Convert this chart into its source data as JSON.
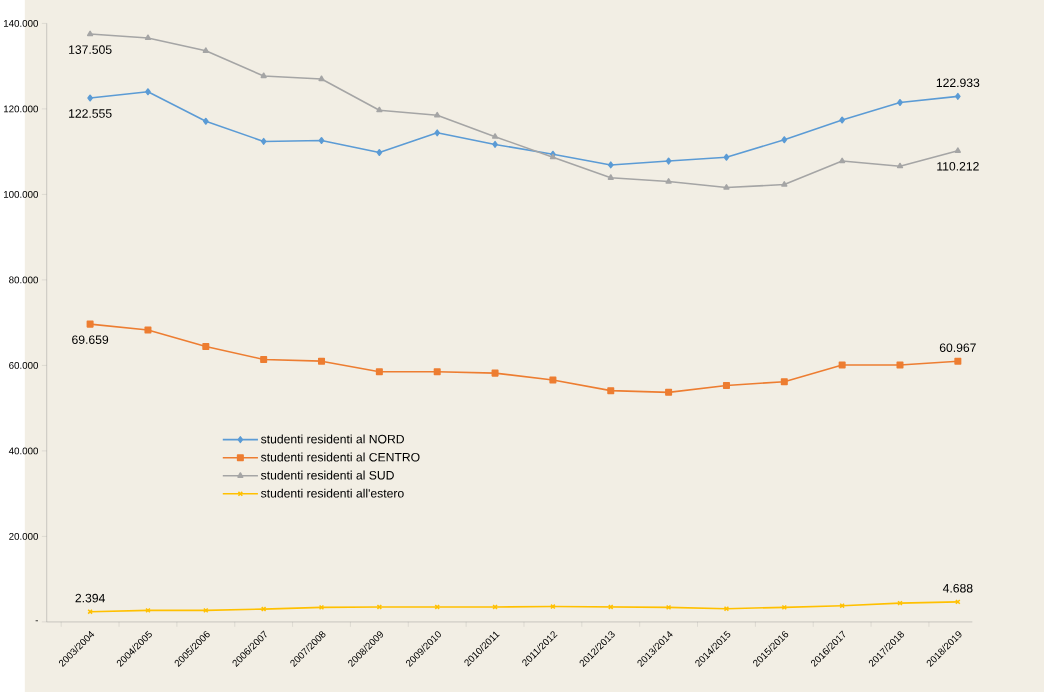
{
  "chart_data": {
    "type": "line",
    "categories": [
      "2003/2004",
      "2004/2005",
      "2005/2006",
      "2006/2007",
      "2007/2008",
      "2008/2009",
      "2009/2010",
      "2010/2011",
      "2011/2012",
      "2012/2013",
      "2013/2014",
      "2014/2015",
      "2015/2016",
      "2016/2017",
      "2017/2018",
      "2018/2019"
    ],
    "series": [
      {
        "name": "studenti residenti al NORD",
        "color": "#5b9bd5",
        "marker": "diamond",
        "values": [
          122555,
          124000,
          117100,
          112400,
          112600,
          109800,
          114400,
          111700,
          109400,
          106900,
          107800,
          108700,
          112800,
          117400,
          121500,
          122933
        ],
        "value_labels": [
          "122.555",
          null,
          null,
          null,
          null,
          null,
          null,
          null,
          null,
          null,
          null,
          null,
          null,
          null,
          null,
          "122.933"
        ]
      },
      {
        "name": "studenti residenti al CENTRO",
        "color": "#ed7d31",
        "marker": "square",
        "values": [
          69659,
          68300,
          64400,
          61400,
          61000,
          58500,
          58500,
          58200,
          56600,
          54100,
          53700,
          55300,
          56200,
          60100,
          60100,
          60967
        ],
        "value_labels": [
          "69.659",
          null,
          null,
          null,
          null,
          null,
          null,
          null,
          null,
          null,
          null,
          null,
          null,
          null,
          null,
          "60.967"
        ]
      },
      {
        "name": "studenti residenti al SUD",
        "color": "#a5a5a5",
        "marker": "triangle",
        "values": [
          137505,
          136600,
          133600,
          127700,
          127000,
          119700,
          118500,
          113500,
          108700,
          103900,
          103000,
          101600,
          102300,
          107800,
          106600,
          110212
        ],
        "value_labels": [
          "137.505",
          null,
          null,
          null,
          null,
          null,
          null,
          null,
          null,
          null,
          null,
          null,
          null,
          null,
          null,
          "110.212"
        ]
      },
      {
        "name": "studenti residenti all'estero",
        "color": "#ffc000",
        "marker": "cross",
        "values": [
          2394,
          2700,
          2700,
          3000,
          3400,
          3500,
          3500,
          3500,
          3600,
          3500,
          3400,
          3100,
          3400,
          3800,
          4400,
          4688
        ],
        "value_labels": [
          "2.394",
          null,
          null,
          null,
          null,
          null,
          null,
          null,
          null,
          null,
          null,
          null,
          null,
          null,
          null,
          "4.688"
        ]
      }
    ],
    "ylim": [
      0,
      140000
    ],
    "yticks": [
      {
        "value": 0,
        "label": "-"
      },
      {
        "value": 20000,
        "label": "20.000"
      },
      {
        "value": 40000,
        "label": "40.000"
      },
      {
        "value": 60000,
        "label": "60.000"
      },
      {
        "value": 80000,
        "label": "80.000"
      },
      {
        "value": 100000,
        "label": "100.000"
      },
      {
        "value": 120000,
        "label": "120.000"
      },
      {
        "value": 140000,
        "label": "140.000"
      }
    ],
    "grid": false,
    "legend": "left",
    "line_style": "solid"
  }
}
